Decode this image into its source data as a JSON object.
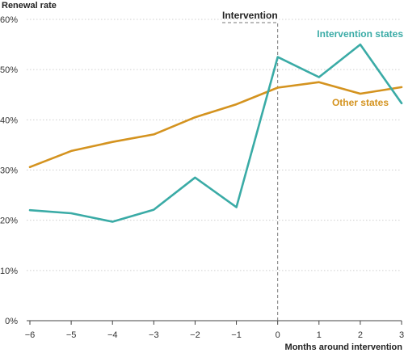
{
  "chart_data": {
    "type": "line",
    "title": "",
    "ylabel": "Renewal rate",
    "xlabel": "Months around intervention",
    "x": [
      -6,
      -5,
      -4,
      -3,
      -2,
      -1,
      0,
      1,
      2,
      3
    ],
    "x_tick_labels": [
      "−6",
      "−5",
      "−4",
      "−3",
      "−2",
      "−1",
      "0",
      "1",
      "2",
      "3"
    ],
    "y_ticks": [
      0,
      10,
      20,
      30,
      40,
      50,
      60
    ],
    "y_tick_labels": [
      "0%",
      "10%",
      "20%",
      "30%",
      "40%",
      "50%",
      "60%"
    ],
    "ylim": [
      0,
      60
    ],
    "xlim": [
      -6,
      3
    ],
    "grid": "horizontal dashed",
    "series": [
      {
        "name": "Intervention states",
        "color": "#3aaba6",
        "values": [
          22.0,
          21.4,
          19.7,
          22.1,
          28.5,
          22.6,
          52.5,
          48.5,
          55.0,
          43.3
        ]
      },
      {
        "name": "Other states",
        "color": "#d4931f",
        "values": [
          30.6,
          33.8,
          35.6,
          37.1,
          40.5,
          43.1,
          46.4,
          47.5,
          45.2,
          46.5
        ]
      }
    ],
    "annotations": [
      {
        "label": "Intervention",
        "x": 0,
        "style": "dashed vertical line"
      }
    ]
  }
}
